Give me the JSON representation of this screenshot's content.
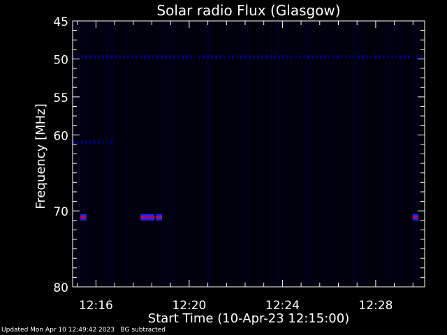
{
  "chart_data": {
    "type": "heatmap",
    "title": "Solar radio Flux (Glasgow)",
    "xlabel": "Start Time (10-Apr-23 12:15:00)",
    "ylabel": "Frequency [MHz]",
    "x_range": [
      "12:15:00",
      "12:30:06"
    ],
    "ylim": [
      45,
      80
    ],
    "y_inverted": true,
    "xticks": [
      "12:16",
      "12:20",
      "12:24",
      "12:28"
    ],
    "yticks": [
      "45",
      "50",
      "55",
      "60",
      "70",
      "80"
    ],
    "colormap": [
      "#000000",
      "#000040",
      "#0000ff",
      "#ff0000"
    ],
    "features": [
      {
        "kind": "band",
        "freq": 49.7,
        "time_start": "12:15:00",
        "time_end": "12:30:06",
        "intensity": 0.6
      },
      {
        "kind": "band",
        "freq": 60.9,
        "time_start": "12:15:00",
        "time_end": "12:16:40",
        "intensity": 0.55
      },
      {
        "kind": "spot",
        "freq": 70.8,
        "time_start": "12:15:20",
        "time_end": "12:15:35",
        "intensity": 1.0
      },
      {
        "kind": "spot",
        "freq": 70.8,
        "time_start": "12:17:55",
        "time_end": "12:18:30",
        "intensity": 1.0
      },
      {
        "kind": "spot",
        "freq": 70.8,
        "time_start": "12:18:35",
        "time_end": "12:18:50",
        "intensity": 1.0
      },
      {
        "kind": "spot",
        "freq": 70.8,
        "time_start": "12:29:35",
        "time_end": "12:29:50",
        "intensity": 1.0
      }
    ]
  },
  "footer": {
    "updated": "Updated Mon Apr 10 12:49:42 2023",
    "bg_note": "BG subtracted"
  }
}
